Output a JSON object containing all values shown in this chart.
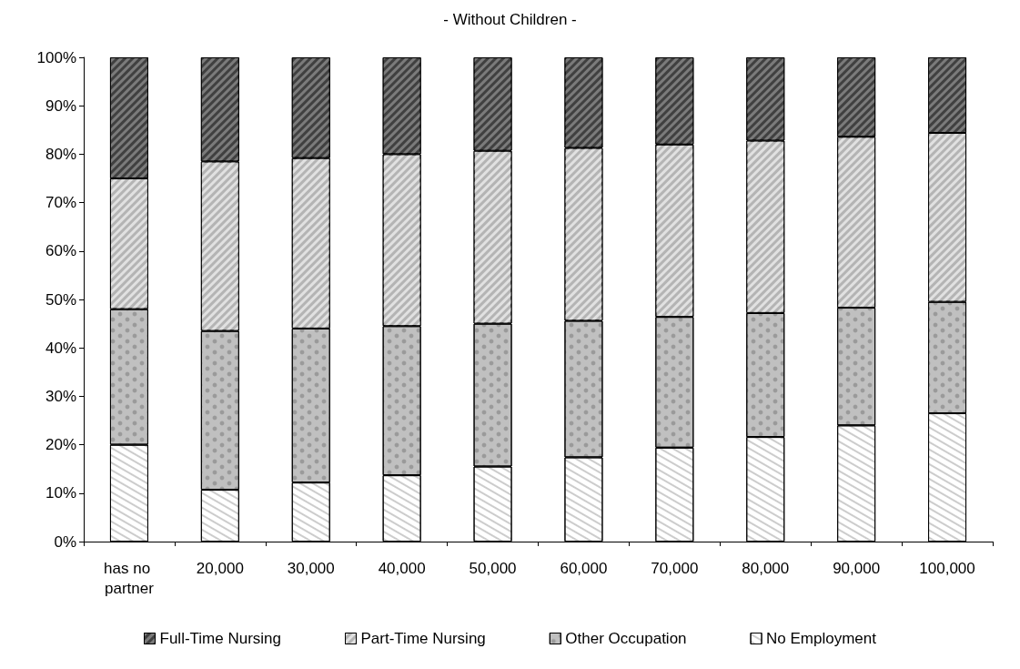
{
  "chart_data": {
    "type": "bar",
    "title": "- Without Children -",
    "stacked": true,
    "legend": "bottom",
    "grid": false,
    "categories": [
      "has no partner",
      "20,000",
      "30,000",
      "40,000",
      "50,000",
      "60,000",
      "70,000",
      "80,000",
      "90,000",
      "100,000"
    ],
    "ylim": [
      0,
      100
    ],
    "yticks": [
      {
        "value": 0,
        "label": "0%"
      },
      {
        "value": 10,
        "label": "10%"
      },
      {
        "value": 20,
        "label": "20%"
      },
      {
        "value": 30,
        "label": "30%"
      },
      {
        "value": 40,
        "label": "40%"
      },
      {
        "value": 50,
        "label": "50%"
      },
      {
        "value": 60,
        "label": "60%"
      },
      {
        "value": 70,
        "label": "70%"
      },
      {
        "value": 80,
        "label": "80%"
      },
      {
        "value": 90,
        "label": "90%"
      },
      {
        "value": 100,
        "label": "100%"
      }
    ],
    "series": [
      {
        "name": "No Employment",
        "color": "#ffffff",
        "values": [
          20,
          10.7,
          12.2,
          13.7,
          15.5,
          17.4,
          19.4,
          21.6,
          24,
          26.5
        ]
      },
      {
        "name": "Other Occupation",
        "color": "#c0c0c0",
        "values": [
          28,
          32.8,
          31.8,
          30.8,
          29.5,
          28.2,
          27,
          25.6,
          24.3,
          23
        ]
      },
      {
        "name": "Part-Time Nursing",
        "color": "#b4b4b4",
        "values": [
          27,
          35,
          35.2,
          35.5,
          35.7,
          35.7,
          35.6,
          35.6,
          35.3,
          34.9
        ]
      },
      {
        "name": "Full-Time Nursing",
        "color": "#404040",
        "values": [
          25,
          21.5,
          20.8,
          20,
          19.3,
          18.7,
          18,
          17.2,
          16.4,
          15.6
        ]
      }
    ]
  }
}
